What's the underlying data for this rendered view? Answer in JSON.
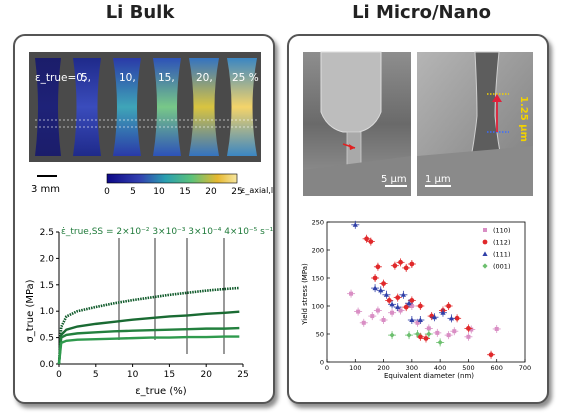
{
  "titles": {
    "left": "Li Bulk",
    "right": "Li Micro/Nano"
  },
  "strain_map": {
    "labels": [
      "ε_true=0,",
      "5,",
      "10,",
      "15,",
      "20,",
      "25 %"
    ],
    "scalebar": "3 mm",
    "colorbar_ticks": [
      "0",
      "5",
      "10",
      "15",
      "20",
      "25"
    ],
    "colorbar_label": "ε_axial,local (%)"
  },
  "sem": {
    "left_scalebar": "5 µm",
    "right_scalebar": "1 µm",
    "right_annotation": "1.25 µm"
  },
  "chart_data": [
    {
      "type": "line",
      "xlabel": "ε_true (%)",
      "ylabel": "σ_true (MPa)",
      "xlim": [
        0,
        25
      ],
      "ylim": [
        0,
        2.5
      ],
      "x_ticks": [
        0,
        5,
        10,
        15,
        20,
        25
      ],
      "y_ticks": [
        0.0,
        0.5,
        1.0,
        1.5,
        2.0,
        2.5
      ],
      "rate_label": "ε̇_true,SS = 2×10⁻²  3×10⁻³    3×10⁻⁴    4×10⁻⁵ s⁻¹",
      "series": [
        {
          "name": "2×10⁻²",
          "x": [
            0,
            0.3,
            1,
            2.5,
            5,
            7.5,
            10,
            12.5,
            15,
            17.5,
            20,
            22.5,
            24.5
          ],
          "y": [
            0,
            0.7,
            0.9,
            1.0,
            1.08,
            1.15,
            1.21,
            1.26,
            1.31,
            1.35,
            1.39,
            1.42,
            1.44
          ]
        },
        {
          "name": "3×10⁻³",
          "x": [
            0,
            0.3,
            1,
            2.5,
            5,
            7.5,
            10,
            12.5,
            15,
            17.5,
            20,
            22.5,
            24.5
          ],
          "y": [
            0,
            0.55,
            0.65,
            0.71,
            0.76,
            0.8,
            0.84,
            0.87,
            0.9,
            0.92,
            0.95,
            0.97,
            0.99
          ]
        },
        {
          "name": "3×10⁻⁴",
          "x": [
            0,
            0.3,
            1,
            2.5,
            5,
            7.5,
            10,
            12.5,
            15,
            17.5,
            20,
            22.5,
            24.5
          ],
          "y": [
            0,
            0.5,
            0.55,
            0.58,
            0.6,
            0.62,
            0.63,
            0.64,
            0.65,
            0.66,
            0.67,
            0.67,
            0.68
          ]
        },
        {
          "name": "4×10⁻⁵",
          "x": [
            0,
            0.3,
            1,
            2.5,
            5,
            7.5,
            10,
            12.5,
            15,
            17.5,
            20,
            22.5,
            24.5
          ],
          "y": [
            0,
            0.4,
            0.44,
            0.46,
            0.47,
            0.48,
            0.49,
            0.5,
            0.5,
            0.51,
            0.51,
            0.52,
            0.52
          ]
        }
      ]
    },
    {
      "type": "scatter",
      "xlabel": "Equivalent diameter (nm)",
      "ylabel": "Yield stress (MPa)",
      "xlim": [
        0,
        700
      ],
      "ylim": [
        0,
        250
      ],
      "x_ticks": [
        0,
        100,
        200,
        300,
        400,
        500,
        600,
        700
      ],
      "y_ticks": [
        0,
        50,
        100,
        150,
        200,
        250
      ],
      "series": [
        {
          "name": "(110)",
          "color": "#d98ec4",
          "points": [
            [
              85,
              122
            ],
            [
              110,
              90
            ],
            [
              130,
              70
            ],
            [
              160,
              82
            ],
            [
              180,
              92
            ],
            [
              200,
              75
            ],
            [
              230,
              88
            ],
            [
              260,
              92
            ],
            [
              300,
              100
            ],
            [
              320,
              70
            ],
            [
              360,
              60
            ],
            [
              390,
              52
            ],
            [
              430,
              48
            ],
            [
              450,
              55
            ],
            [
              500,
              45
            ],
            [
              510,
              58
            ],
            [
              600,
              59
            ]
          ]
        },
        {
          "name": "(112)",
          "color": "#e0282a",
          "points": [
            [
              140,
              220
            ],
            [
              155,
              215
            ],
            [
              170,
              150
            ],
            [
              180,
              170
            ],
            [
              200,
              140
            ],
            [
              240,
              172
            ],
            [
              260,
              178
            ],
            [
              280,
              168
            ],
            [
              300,
              175
            ],
            [
              220,
              110
            ],
            [
              250,
              115
            ],
            [
              280,
              98
            ],
            [
              300,
              110
            ],
            [
              330,
              100
            ],
            [
              370,
              82
            ],
            [
              410,
              92
            ],
            [
              430,
              100
            ],
            [
              460,
              78
            ],
            [
              500,
              60
            ],
            [
              580,
              13
            ],
            [
              350,
              42
            ],
            [
              330,
              45
            ]
          ]
        },
        {
          "name": "(111)",
          "color": "#2f3fa8",
          "points": [
            [
              100,
              245
            ],
            [
              170,
              132
            ],
            [
              190,
              128
            ],
            [
              210,
              120
            ],
            [
              230,
              103
            ],
            [
              250,
              98
            ],
            [
              270,
              120
            ],
            [
              290,
              105
            ],
            [
              300,
              75
            ],
            [
              330,
              75
            ],
            [
              380,
              80
            ],
            [
              410,
              88
            ],
            [
              440,
              78
            ]
          ]
        },
        {
          "name": "(001)",
          "color": "#6cbf6e",
          "points": [
            [
              230,
              48
            ],
            [
              290,
              48
            ],
            [
              320,
              50
            ],
            [
              360,
              50
            ],
            [
              400,
              35
            ]
          ]
        }
      ]
    }
  ]
}
